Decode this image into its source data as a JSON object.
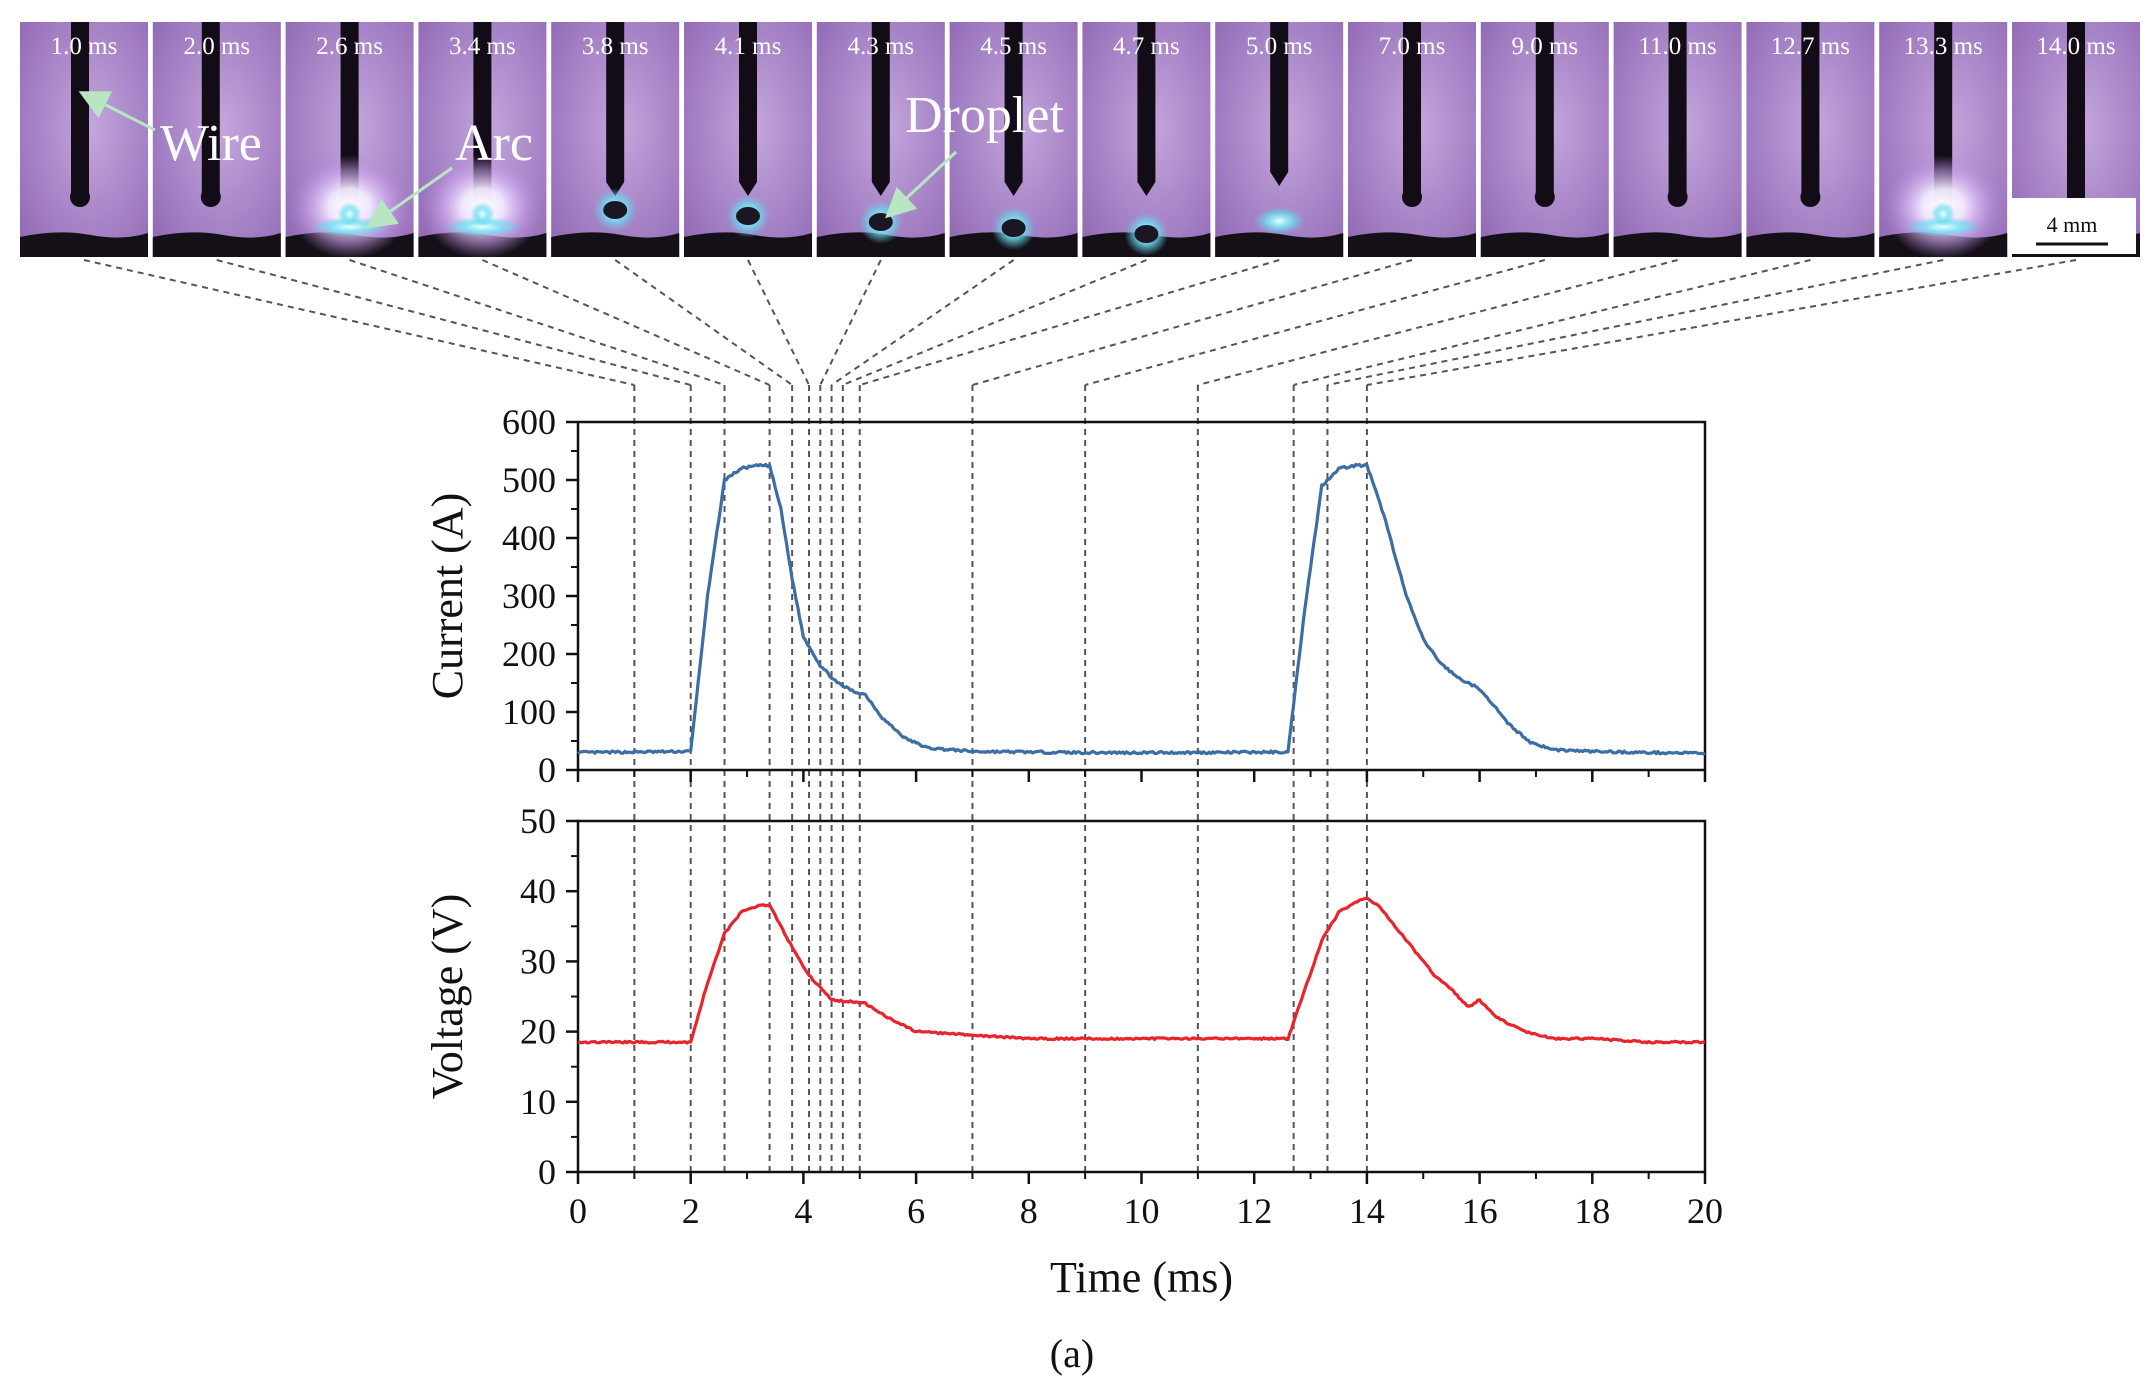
{
  "chart_data": {
    "type": "line",
    "figure_label": "(a)",
    "frames": [
      {
        "label": "1.0 ms",
        "t": 1.0,
        "state": "wire"
      },
      {
        "label": "2.0 ms",
        "t": 2.0,
        "state": "wire"
      },
      {
        "label": "2.6 ms",
        "t": 2.6,
        "state": "arc"
      },
      {
        "label": "3.4 ms",
        "t": 3.4,
        "state": "arc"
      },
      {
        "label": "3.8 ms",
        "t": 3.8,
        "state": "drop1"
      },
      {
        "label": "4.1 ms",
        "t": 4.1,
        "state": "drop2"
      },
      {
        "label": "4.3 ms",
        "t": 4.3,
        "state": "drop3"
      },
      {
        "label": "4.5 ms",
        "t": 4.5,
        "state": "drop4"
      },
      {
        "label": "4.7 ms",
        "t": 4.7,
        "state": "drop5"
      },
      {
        "label": "5.0 ms",
        "t": 5.0,
        "state": "glow"
      },
      {
        "label": "7.0 ms",
        "t": 7.0,
        "state": "wire"
      },
      {
        "label": "9.0 ms",
        "t": 9.0,
        "state": "wire"
      },
      {
        "label": "11.0 ms",
        "t": 11.0,
        "state": "wire"
      },
      {
        "label": "12.7 ms",
        "t": 12.7,
        "state": "wire"
      },
      {
        "label": "13.3 ms",
        "t": 13.3,
        "state": "arc"
      },
      {
        "label": "14.0 ms",
        "t": 14.0,
        "state": "arc_small"
      }
    ],
    "annotations": {
      "wire": "Wire",
      "arc": "Arc",
      "droplet": "Droplet"
    },
    "scale_bar": "4 mm",
    "x_axis": {
      "title": "Time (ms)",
      "range": [
        0,
        20
      ],
      "ticks": [
        0,
        2,
        4,
        6,
        8,
        10,
        12,
        14,
        16,
        18,
        20
      ]
    },
    "panels": [
      {
        "name": "current",
        "ylabel": "Current (A)",
        "ylim": [
          0,
          600
        ],
        "yticks": [
          0,
          100,
          200,
          300,
          400,
          500,
          600
        ],
        "color": "#3a6ea5",
        "series": {
          "name": "Current",
          "x": [
            0,
            2.0,
            2.3,
            2.6,
            2.9,
            3.2,
            3.4,
            3.6,
            3.8,
            4.0,
            4.3,
            4.6,
            4.9,
            5.1,
            5.4,
            5.8,
            6.2,
            7.0,
            8,
            9,
            10,
            11,
            12.6,
            12.9,
            13.2,
            13.5,
            13.8,
            14.0,
            14.3,
            14.7,
            15.0,
            15.3,
            15.6,
            15.9,
            16.1,
            16.5,
            16.9,
            17.3,
            18,
            19,
            20
          ],
          "y": [
            30,
            32,
            300,
            500,
            520,
            525,
            525,
            450,
            330,
            230,
            180,
            150,
            135,
            130,
            90,
            55,
            38,
            32,
            31,
            30,
            30,
            30,
            31,
            280,
            490,
            520,
            525,
            525,
            440,
            300,
            225,
            185,
            160,
            145,
            130,
            80,
            48,
            35,
            32,
            30,
            29
          ]
        }
      },
      {
        "name": "voltage",
        "ylabel": "Voltage (V)",
        "ylim": [
          0,
          50
        ],
        "yticks": [
          0,
          10,
          20,
          30,
          40,
          50
        ],
        "color": "#e8252d",
        "series": {
          "name": "Voltage",
          "x": [
            0,
            2.0,
            2.3,
            2.6,
            2.9,
            3.2,
            3.4,
            3.6,
            3.8,
            4.1,
            4.5,
            4.8,
            5.1,
            5.5,
            6.0,
            7.0,
            8,
            9,
            10,
            11,
            12.6,
            12.9,
            13.2,
            13.5,
            13.8,
            14.0,
            14.2,
            14.5,
            14.9,
            15.2,
            15.5,
            15.8,
            16.0,
            16.3,
            16.8,
            17.3,
            18,
            19,
            20
          ],
          "y": [
            18.5,
            18.5,
            27,
            34,
            37,
            38,
            38,
            35,
            32,
            28,
            24.5,
            24.3,
            24,
            22,
            20,
            19.5,
            19,
            19,
            19,
            19,
            19,
            26,
            33,
            37,
            38.5,
            39,
            38,
            35,
            31,
            28,
            26,
            23.5,
            24.5,
            22,
            20,
            19,
            19,
            18.5,
            18.5
          ]
        }
      }
    ]
  }
}
